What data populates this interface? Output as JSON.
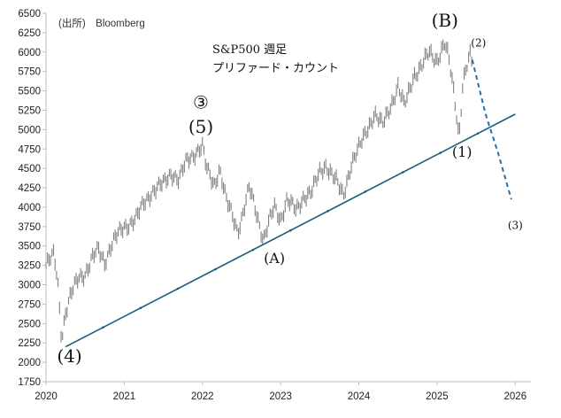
{
  "source_text": "(出所)　Bloomberg",
  "title_lines": [
    "S&P500 週足",
    "プリファード・カウント"
  ],
  "chart_data": {
    "type": "line",
    "y_ticks": [
      1750,
      2000,
      2250,
      2500,
      2750,
      3000,
      3250,
      3500,
      3750,
      4000,
      4250,
      4500,
      4750,
      5000,
      5250,
      5500,
      5750,
      6000,
      6250,
      6500
    ],
    "x_ticks": [
      "2020",
      "2021",
      "2022",
      "2023",
      "2024",
      "2025",
      "2026"
    ],
    "ylim": [
      1750,
      6500
    ],
    "xlim": [
      2020,
      2026.2
    ],
    "price_path": [
      [
        2020.0,
        3250
      ],
      [
        2020.05,
        3320
      ],
      [
        2020.1,
        3380
      ],
      [
        2020.15,
        3050
      ],
      [
        2020.2,
        2300
      ],
      [
        2020.25,
        2650
      ],
      [
        2020.33,
        2900
      ],
      [
        2020.42,
        3100
      ],
      [
        2020.5,
        3150
      ],
      [
        2020.6,
        3350
      ],
      [
        2020.67,
        3450
      ],
      [
        2020.75,
        3300
      ],
      [
        2020.83,
        3500
      ],
      [
        2020.92,
        3650
      ],
      [
        2021.0,
        3750
      ],
      [
        2021.15,
        3850
      ],
      [
        2021.25,
        4050
      ],
      [
        2021.35,
        4200
      ],
      [
        2021.5,
        4300
      ],
      [
        2021.6,
        4450
      ],
      [
        2021.7,
        4350
      ],
      [
        2021.8,
        4600
      ],
      [
        2021.9,
        4700
      ],
      [
        2022.0,
        4780
      ],
      [
        2022.05,
        4500
      ],
      [
        2022.15,
        4300
      ],
      [
        2022.22,
        4500
      ],
      [
        2022.3,
        4100
      ],
      [
        2022.4,
        3850
      ],
      [
        2022.45,
        3700
      ],
      [
        2022.5,
        3850
      ],
      [
        2022.6,
        4250
      ],
      [
        2022.7,
        3900
      ],
      [
        2022.78,
        3580
      ],
      [
        2022.85,
        3800
      ],
      [
        2022.92,
        4000
      ],
      [
        2023.0,
        3850
      ],
      [
        2023.08,
        4100
      ],
      [
        2023.2,
        3950
      ],
      [
        2023.3,
        4150
      ],
      [
        2023.4,
        4200
      ],
      [
        2023.5,
        4450
      ],
      [
        2023.58,
        4550
      ],
      [
        2023.7,
        4350
      ],
      [
        2023.8,
        4150
      ],
      [
        2023.9,
        4550
      ],
      [
        2024.0,
        4750
      ],
      [
        2024.1,
        5000
      ],
      [
        2024.2,
        5200
      ],
      [
        2024.3,
        5050
      ],
      [
        2024.4,
        5300
      ],
      [
        2024.5,
        5550
      ],
      [
        2024.58,
        5300
      ],
      [
        2024.7,
        5700
      ],
      [
        2024.8,
        5800
      ],
      [
        2024.9,
        6000
      ],
      [
        2025.0,
        5900
      ],
      [
        2025.1,
        6100
      ],
      [
        2025.15,
        5900
      ],
      [
        2025.2,
        5600
      ],
      [
        2025.25,
        5200
      ],
      [
        2025.28,
        4900
      ],
      [
        2025.33,
        5600
      ],
      [
        2025.38,
        5800
      ],
      [
        2025.42,
        5950
      ],
      [
        2025.45,
        5850
      ]
    ],
    "support_line": {
      "from": [
        2020.25,
        2200
      ],
      "to": [
        2026.0,
        5200
      ]
    },
    "projection_dashed": [
      [
        2025.45,
        5900
      ],
      [
        2025.62,
        5200
      ],
      [
        2025.78,
        4700
      ],
      [
        2025.95,
        4100
      ]
    ],
    "wave_labels": [
      {
        "text": "(4)",
        "x": 2020.3,
        "y": 2000,
        "size": "large"
      },
      {
        "text": "③",
        "x": 2021.98,
        "y": 5270,
        "size": "large"
      },
      {
        "text": "(5)",
        "x": 2021.98,
        "y": 4960,
        "size": "large"
      },
      {
        "text": "(A)",
        "x": 2022.92,
        "y": 3280,
        "size": "medium"
      },
      {
        "text": "(B)",
        "x": 2025.1,
        "y": 6330,
        "size": "large"
      },
      {
        "text": "(2)",
        "x": 2025.53,
        "y": 6070,
        "size": "small"
      },
      {
        "text": "(1)",
        "x": 2025.32,
        "y": 4650,
        "size": "medium"
      },
      {
        "text": "(3)",
        "x": 2026.0,
        "y": 3720,
        "size": "small"
      }
    ],
    "colors": {
      "price": "#808080",
      "support": "#1b5f7c",
      "projection": "#2171b5",
      "axis": "#bdbdbd"
    }
  }
}
